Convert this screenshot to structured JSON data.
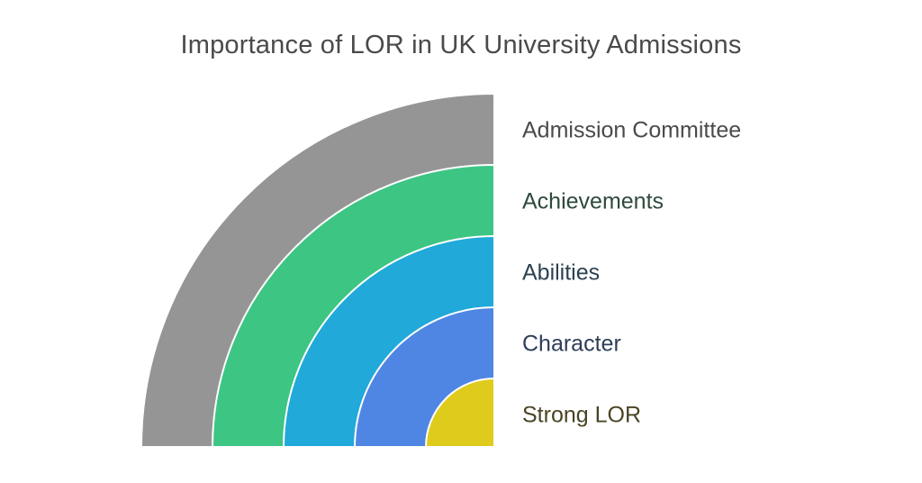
{
  "title": "Importance of LOR in UK University Admissions",
  "layers": [
    {
      "label": "Admission Committee",
      "color": "#959595",
      "label_color": "#4a4a4a"
    },
    {
      "label": "Achievements",
      "color": "#3dc584",
      "label_color": "#2e4a3c"
    },
    {
      "label": "Abilities",
      "color": "#20a9d9",
      "label_color": "#2c4250"
    },
    {
      "label": "Character",
      "color": "#4f86e3",
      "label_color": "#2e3d58"
    },
    {
      "label": "Strong LOR",
      "color": "#dfcb1c",
      "label_color": "#4a4424"
    }
  ]
}
